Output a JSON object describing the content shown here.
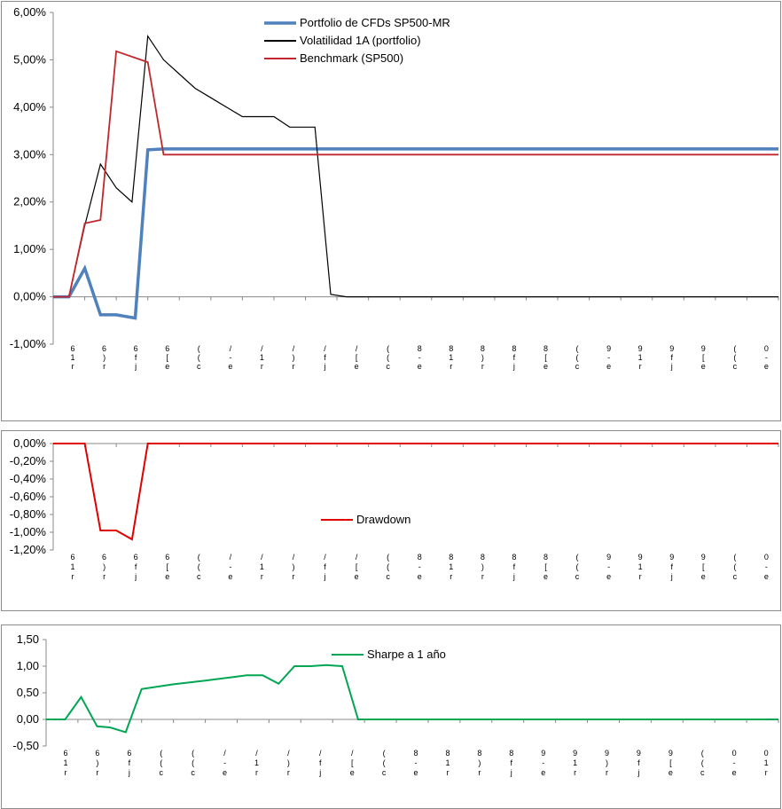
{
  "chart_data": [
    {
      "type": "line",
      "yticks": [
        "6,00%",
        "5,00%",
        "4,00%",
        "3,00%",
        "2,00%",
        "1,00%",
        "0,00%",
        "-1,00%"
      ],
      "ylim": [
        -1.0,
        6.0
      ],
      "x_count": 23,
      "xticklabels": [
        "6\n1\nr",
        "6\n)\nr",
        "6\nf\nj",
        "6\n[\ne",
        "(\n(\nc",
        "/\n-\ne",
        "/\n1\nr",
        "/\n)\nr",
        "/\nf\nj",
        "/\n[\ne",
        "(\n(\nc",
        "8\n-\ne",
        "8\n1\nr",
        "8\n)\nr",
        "8\nf\nj",
        "8\n[\ne",
        "(\n(\nc",
        "9\n-\ne",
        "9\n1\nr",
        "9\nf\nj",
        "9\n[\ne",
        "(\n(\nc",
        "0\n-\ne"
      ],
      "legend_position": "top-center",
      "series": [
        {
          "name": "Portfolio de CFDs SP500-MR",
          "color": "#4f81bd",
          "width": 3.5,
          "points": [
            [
              0,
              0
            ],
            [
              0.5,
              0
            ],
            [
              1,
              0.6
            ],
            [
              1.5,
              -0.38
            ],
            [
              2,
              -0.38
            ],
            [
              2.6,
              -0.45
            ],
            [
              3,
              3.1
            ],
            [
              3.5,
              3.12
            ],
            [
              4,
              3.12
            ],
            [
              23,
              3.12
            ]
          ]
        },
        {
          "name": "Volatilidad 1A (portfolio)",
          "color": "#000000",
          "width": 1.2,
          "points": [
            [
              0.5,
              0
            ],
            [
              1,
              1.5
            ],
            [
              1.5,
              2.8
            ],
            [
              2,
              2.3
            ],
            [
              2.5,
              2.0
            ],
            [
              3,
              5.5
            ],
            [
              3.5,
              5.0
            ],
            [
              4,
              4.7
            ],
            [
              4.5,
              4.4
            ],
            [
              5,
              4.2
            ],
            [
              5.5,
              4.0
            ],
            [
              6,
              3.8
            ],
            [
              7,
              3.8
            ],
            [
              7.5,
              3.58
            ],
            [
              8.3,
              3.58
            ],
            [
              8.8,
              0.05
            ],
            [
              9.3,
              0
            ],
            [
              23,
              0
            ]
          ]
        },
        {
          "name": "Benchmark (SP500)",
          "color": "#c0282d",
          "width": 1.8,
          "points": [
            [
              0,
              0
            ],
            [
              0.5,
              0
            ],
            [
              1,
              1.55
            ],
            [
              1.5,
              1.62
            ],
            [
              2,
              5.18
            ],
            [
              3,
              4.95
            ],
            [
              3.5,
              3.0
            ],
            [
              23,
              3.0
            ]
          ]
        }
      ]
    },
    {
      "type": "line",
      "yticks": [
        "0,00%",
        "-0,20%",
        "-0,40%",
        "-0,60%",
        "-0,80%",
        "-1,00%",
        "-1,20%"
      ],
      "ylim": [
        -1.2,
        0.0
      ],
      "x_count": 23,
      "xticklabels": [
        "6\n1\nr",
        "6\n)\nr",
        "6\nf\nj",
        "6\n[\ne",
        "(\n(\nc",
        "/\n-\ne",
        "/\n1\nr",
        "/\n)\nr",
        "/\nf\nj",
        "/\n[\ne",
        "(\n(\nc",
        "8\n-\ne",
        "8\n1\nr",
        "8\n)\nr",
        "8\nf\nj",
        "8\n[\ne",
        "(\n(\nc",
        "9\n-\ne",
        "9\n1\nr",
        "9\nf\nj",
        "9\n[\ne",
        "(\n(\nc",
        "0\n-\ne"
      ],
      "legend_position": "center",
      "series": [
        {
          "name": "Drawdown",
          "color": "#e00000",
          "width": 2,
          "points": [
            [
              0,
              0
            ],
            [
              1,
              0
            ],
            [
              1.5,
              -0.98
            ],
            [
              2,
              -0.98
            ],
            [
              2.5,
              -1.08
            ],
            [
              3,
              0
            ],
            [
              23,
              0
            ]
          ]
        }
      ]
    },
    {
      "type": "line",
      "yticks": [
        "1,50",
        "1,00",
        "0,50",
        "0,00",
        "-0,50"
      ],
      "ylim": [
        -0.5,
        1.5
      ],
      "x_count": 23,
      "xticklabels": [
        "6\n1\nr",
        "6\n)\nr",
        "6\nf\nj",
        "(\n(\nc",
        "(\n(\nc",
        "/\n-\ne",
        "/\n1\nr",
        "/\n)\nr",
        "/\nf\nj",
        "/\n[\ne",
        "(\n(\nc",
        "8\n-\ne",
        "8\n1\nr",
        "8\n)\nr",
        "8\nf\nj",
        "9\n-\ne",
        "9\n1\nr",
        "9\n)\nr",
        "9\nf\nj",
        "9\n[\ne",
        "(\n(\nc",
        "0\n-\ne",
        "0\n1\nr"
      ],
      "legend_position": "top-center",
      "series": [
        {
          "name": "Sharpe a 1 año",
          "color": "#00a651",
          "width": 2,
          "points": [
            [
              0,
              0
            ],
            [
              0.6,
              0
            ],
            [
              1.1,
              0.42
            ],
            [
              1.6,
              -0.13
            ],
            [
              2,
              -0.15
            ],
            [
              2.5,
              -0.24
            ],
            [
              3,
              0.57
            ],
            [
              4,
              0.66
            ],
            [
              5,
              0.73
            ],
            [
              5.8,
              0.79
            ],
            [
              6.3,
              0.83
            ],
            [
              6.8,
              0.83
            ],
            [
              7.3,
              0.67
            ],
            [
              7.8,
              1.0
            ],
            [
              8.3,
              1.0
            ],
            [
              8.8,
              1.02
            ],
            [
              9.3,
              1.0
            ],
            [
              9.8,
              0.0
            ],
            [
              23,
              0
            ]
          ]
        }
      ]
    }
  ]
}
